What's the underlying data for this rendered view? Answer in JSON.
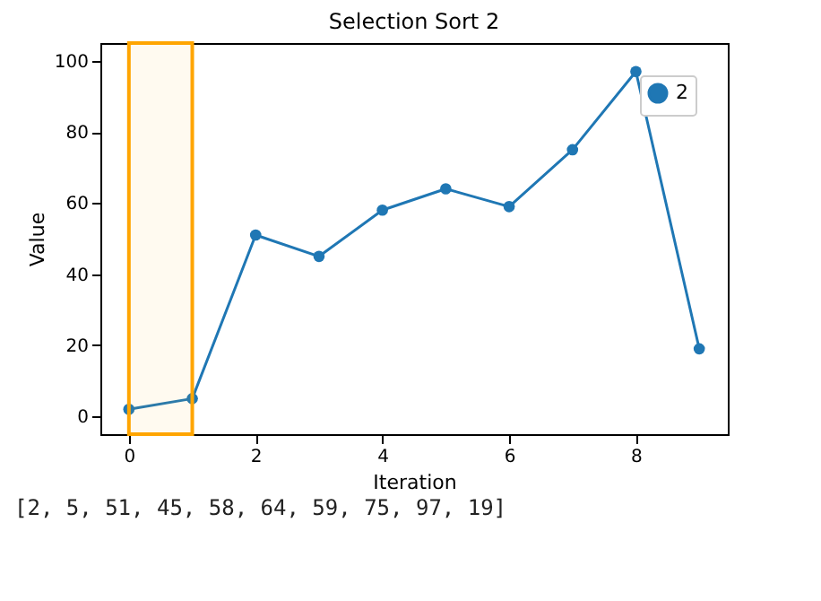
{
  "chart_data": {
    "type": "line",
    "title": "Selection Sort 2",
    "xlabel": "Iteration",
    "ylabel": "Value",
    "x": [
      0,
      1,
      2,
      3,
      4,
      5,
      6,
      7,
      8,
      9
    ],
    "series": [
      {
        "name": "2",
        "color": "#1f77b4",
        "values": [
          2,
          5,
          51,
          45,
          58,
          64,
          59,
          75,
          97,
          19
        ]
      }
    ],
    "xlim": [
      -0.45,
      9.45
    ],
    "xticks": [
      0,
      2,
      4,
      6,
      8
    ],
    "ylim": [
      -5,
      105
    ],
    "yticks": [
      0,
      20,
      40,
      60,
      80,
      100
    ],
    "bands": [
      {
        "axis": "x",
        "from": 0,
        "to": 1,
        "color": "#ffa500"
      }
    ],
    "marker": "circle",
    "legend": "top right",
    "grid": false,
    "annotations": [
      "[2, 5, 51, 45, 58, 64, 59, 75, 97, 19]"
    ]
  }
}
